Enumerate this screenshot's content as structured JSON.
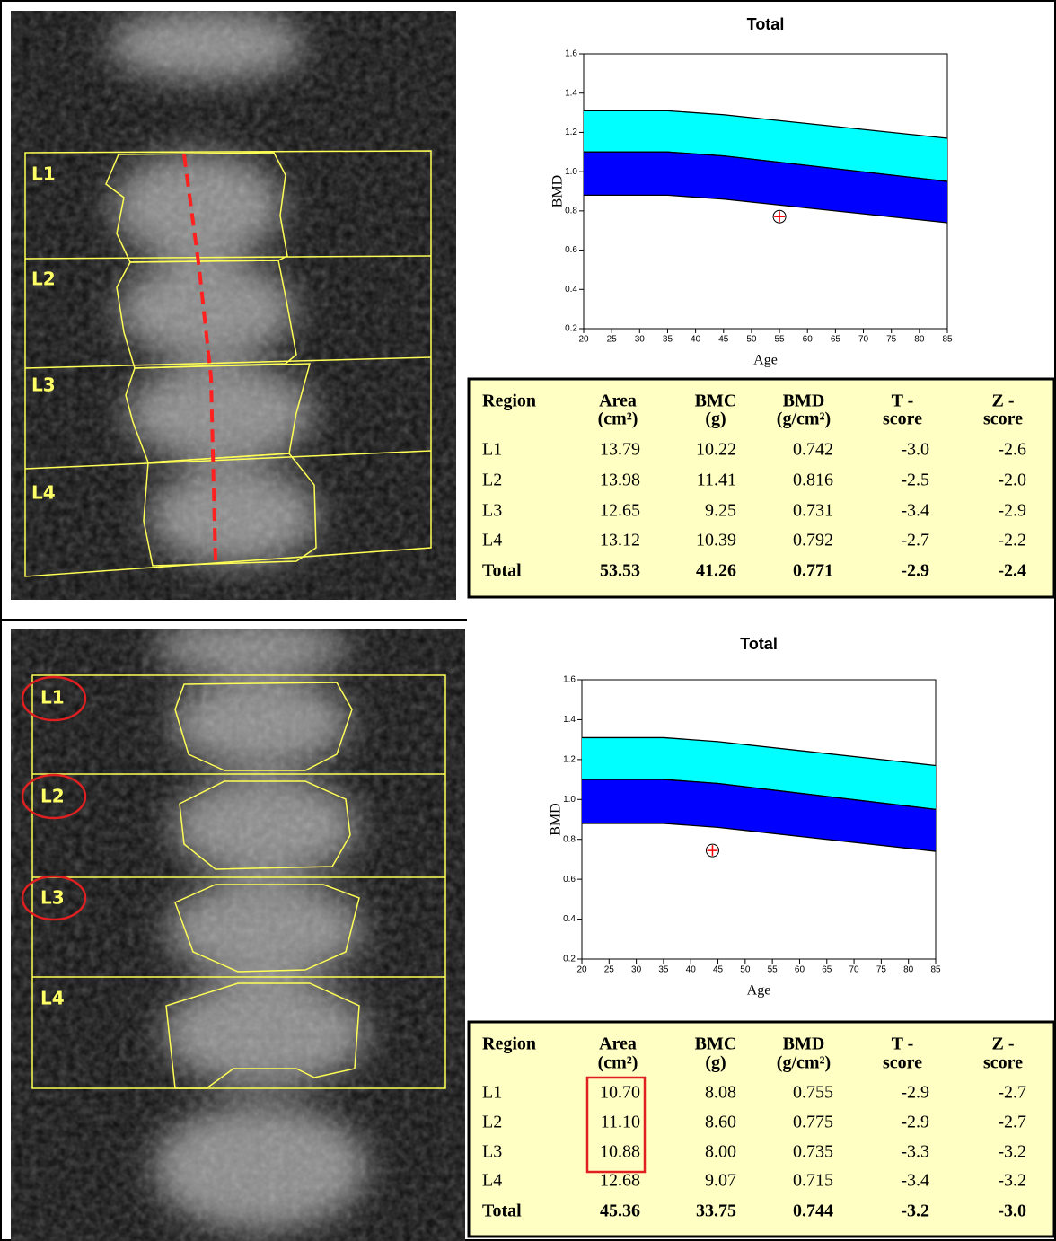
{
  "chart_data": [
    {
      "type": "band",
      "title": "Total",
      "xlabel": "Age",
      "ylabel": "BMD",
      "x": [
        20,
        35,
        45,
        85
      ],
      "bands": [
        {
          "color": "#00ffff",
          "upper": [
            1.31,
            1.31,
            1.29,
            1.17
          ],
          "lower": [
            1.1,
            1.1,
            1.08,
            0.95
          ]
        },
        {
          "color": "#0000ff",
          "upper": [
            1.1,
            1.1,
            1.08,
            0.95
          ],
          "lower": [
            0.88,
            0.88,
            0.86,
            0.74
          ]
        }
      ],
      "point": {
        "x": 55,
        "y": 0.771,
        "color": "#ff0000"
      },
      "xlim": [
        20,
        85
      ],
      "xticks": [
        20,
        25,
        30,
        35,
        40,
        45,
        50,
        55,
        60,
        65,
        70,
        75,
        80,
        85
      ],
      "ylim": [
        0.2,
        1.6
      ],
      "yticks": [
        0.2,
        0.4,
        0.6,
        0.8,
        {
          "value": 1,
          "label": "1.0"
        },
        1.2,
        1.4,
        1.6
      ]
    },
    {
      "type": "band",
      "title": "Total",
      "xlabel": "Age",
      "ylabel": "BMD",
      "x": [
        20,
        35,
        45,
        85
      ],
      "bands": [
        {
          "color": "#00ffff",
          "upper": [
            1.31,
            1.31,
            1.29,
            1.17
          ],
          "lower": [
            1.1,
            1.1,
            1.08,
            0.95
          ]
        },
        {
          "color": "#0000ff",
          "upper": [
            1.1,
            1.1,
            1.08,
            0.95
          ],
          "lower": [
            0.88,
            0.88,
            0.86,
            0.74
          ]
        }
      ],
      "point": {
        "x": 44,
        "y": 0.744,
        "color": "#ff0000"
      },
      "xlim": [
        20,
        85
      ],
      "xticks": [
        20,
        25,
        30,
        35,
        40,
        45,
        50,
        55,
        60,
        65,
        70,
        75,
        80,
        85
      ],
      "ylim": [
        0.2,
        1.6
      ],
      "yticks": [
        0.2,
        0.4,
        0.6,
        0.8,
        {
          "value": 1,
          "label": "1.0"
        },
        1.2,
        1.4,
        1.6
      ]
    }
  ],
  "scans": [
    {
      "labels": [
        "L1",
        "L2",
        "L3",
        "L4"
      ]
    },
    {
      "labels": [
        "L1",
        "L2",
        "L3",
        "L4"
      ]
    }
  ],
  "tables": [
    {
      "header": [
        [
          "Region"
        ],
        [
          "Area",
          "(cm²)"
        ],
        [
          "BMC",
          "(g)"
        ],
        [
          "BMD",
          "(g/cm²)"
        ],
        [
          "T -",
          "score"
        ],
        [
          "Z -",
          "score"
        ]
      ],
      "rows": [
        [
          "L1",
          "13.79",
          "10.22",
          "0.742",
          "-3.0",
          "-2.6"
        ],
        [
          "L2",
          "13.98",
          "11.41",
          "0.816",
          "-2.5",
          "-2.0"
        ],
        [
          "L3",
          "12.65",
          "9.25",
          "0.731",
          "-3.4",
          "-2.9"
        ],
        [
          "L4",
          "13.12",
          "10.39",
          "0.792",
          "-2.7",
          "-2.2"
        ],
        [
          "Total",
          "53.53",
          "41.26",
          "0.771",
          "-2.9",
          "-2.4"
        ]
      ]
    },
    {
      "header": [
        [
          "Region"
        ],
        [
          "Area",
          "(cm²)"
        ],
        [
          "BMC",
          "(g)"
        ],
        [
          "BMD",
          "(g/cm²)"
        ],
        [
          "T -",
          "score"
        ],
        [
          "Z -",
          "score"
        ]
      ],
      "rows": [
        [
          "L1",
          "10.70",
          "8.08",
          "0.755",
          "-2.9",
          "-2.7"
        ],
        [
          "L2",
          "11.10",
          "8.60",
          "0.775",
          "-2.9",
          "-2.7"
        ],
        [
          "L3",
          "10.88",
          "8.00",
          "0.735",
          "-3.3",
          "-3.2"
        ],
        [
          "L4",
          "12.68",
          "9.07",
          "0.715",
          "-3.4",
          "-3.2"
        ],
        [
          "Total",
          "45.36",
          "33.75",
          "0.744",
          "-3.2",
          "-3.0"
        ]
      ]
    }
  ]
}
